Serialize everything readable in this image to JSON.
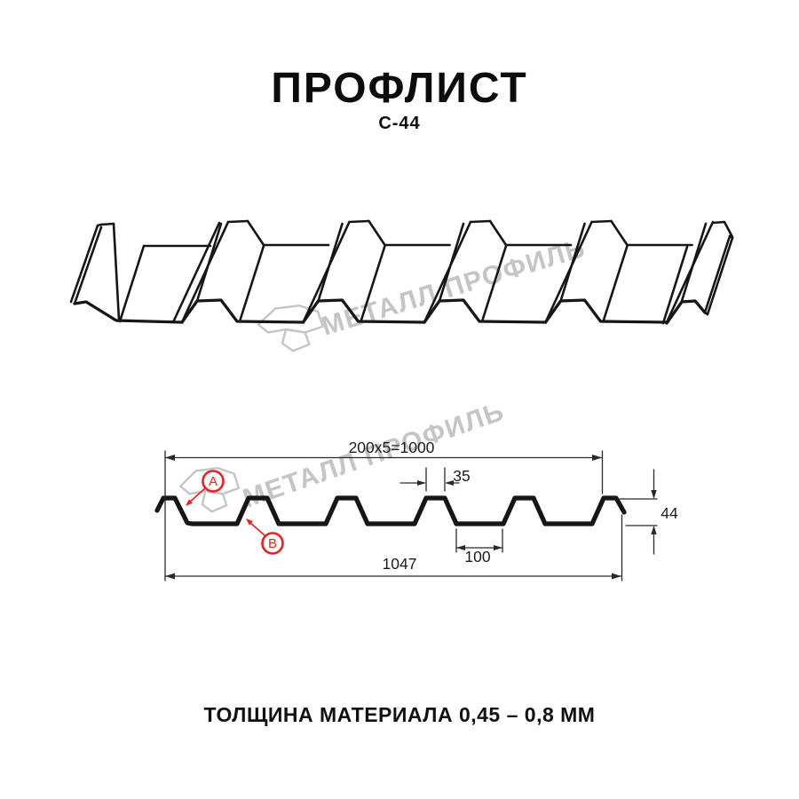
{
  "header": {
    "title": "ПРОФЛИСТ",
    "subtitle": "С-44"
  },
  "watermark": {
    "text": "МЕТАЛЛ ПРОФИЛЬ"
  },
  "cross_section": {
    "dim_coverage": "200x5=1000",
    "dim_rib_top": "35",
    "dim_height": "44",
    "dim_total": "1047",
    "dim_flat": "100",
    "label_a": "A",
    "label_b": "B"
  },
  "footer": {
    "caption": "ТОЛЩИНА МАТЕРИАЛА 0,45 – 0,8 ММ"
  },
  "colors": {
    "line": "#161616",
    "dim_line": "#2a2a2a",
    "accent": "#e8221c",
    "watermark": "#c5c5c5"
  }
}
